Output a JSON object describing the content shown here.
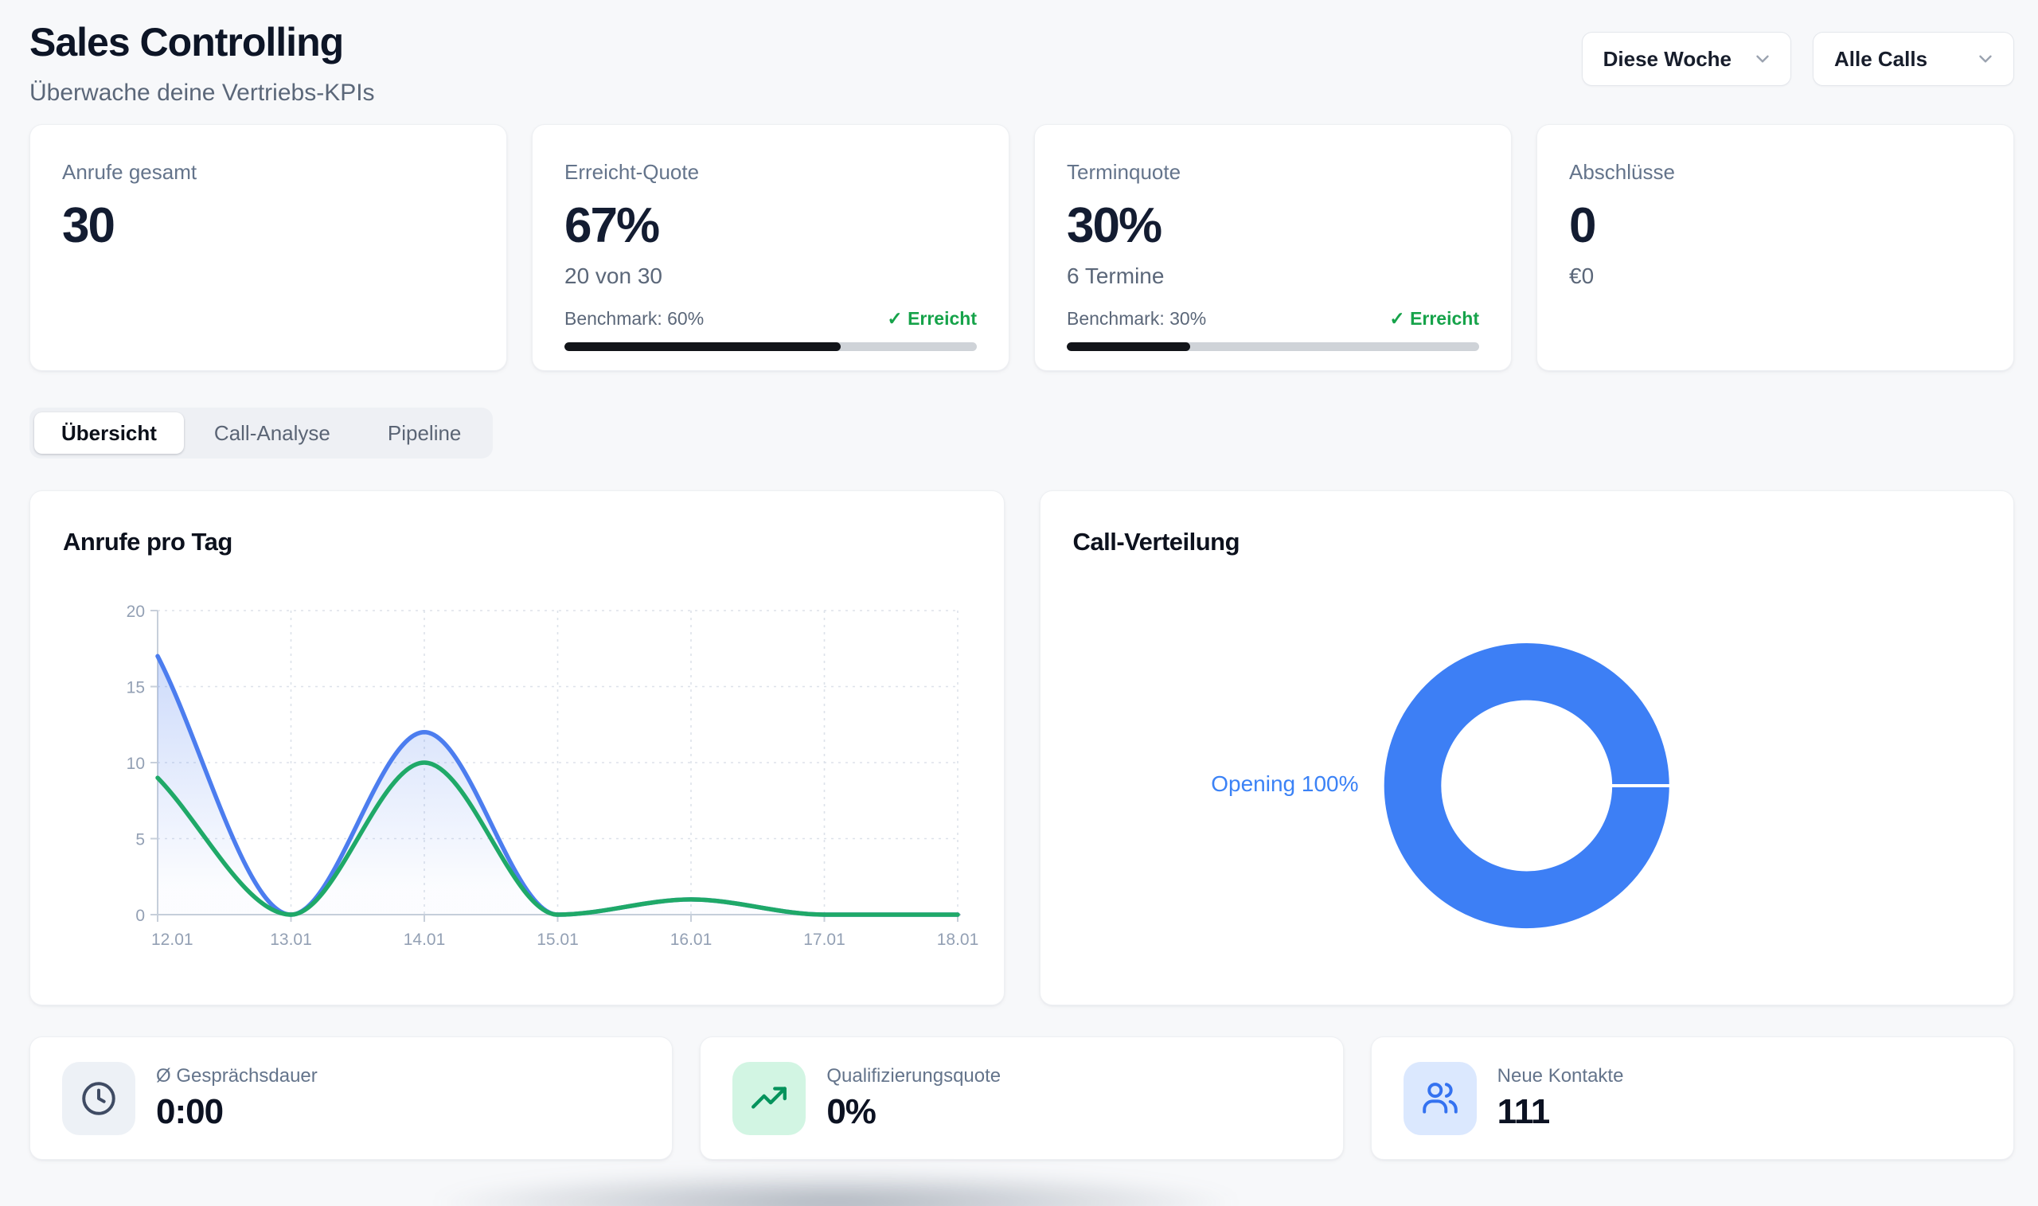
{
  "header": {
    "title": "Sales Controlling",
    "subtitle": "Überwache deine Vertriebs-KPIs",
    "filters": [
      {
        "label": "Diese Woche"
      },
      {
        "label": "Alle Calls"
      }
    ]
  },
  "kpis": [
    {
      "label": "Anrufe gesamt",
      "value": "30"
    },
    {
      "label": "Erreicht-Quote",
      "value": "67%",
      "sub": "20 von 30",
      "benchmark": "Benchmark: 60%",
      "status": "✓ Erreicht",
      "progress": 67
    },
    {
      "label": "Terminquote",
      "value": "30%",
      "sub": "6 Termine",
      "benchmark": "Benchmark: 30%",
      "status": "✓ Erreicht",
      "progress": 30
    },
    {
      "label": "Abschlüsse",
      "value": "0",
      "sub": "€0"
    }
  ],
  "tabs": [
    {
      "label": "Übersicht",
      "active": true
    },
    {
      "label": "Call-Analyse",
      "active": false
    },
    {
      "label": "Pipeline",
      "active": false
    }
  ],
  "panels": {
    "line_chart_title": "Anrufe pro Tag",
    "donut_chart_title": "Call-Verteilung",
    "donut_center_label": "Opening 100%"
  },
  "chart_data": [
    {
      "type": "line",
      "title": "Anrufe pro Tag",
      "x": [
        "12.01",
        "13.01",
        "14.01",
        "15.01",
        "16.01",
        "17.01",
        "18.01"
      ],
      "series": [
        {
          "name": "series-blue",
          "color": "#4c7def",
          "area_fill": true,
          "values": [
            17,
            0,
            12,
            0,
            1,
            0,
            0
          ]
        },
        {
          "name": "series-green",
          "color": "#1fa968",
          "area_fill": false,
          "values": [
            9,
            0,
            10,
            0,
            1,
            0,
            0
          ]
        }
      ],
      "ylim": [
        0,
        20
      ],
      "yticks": [
        0,
        5,
        10,
        15,
        20
      ],
      "grid": "dashed",
      "legend": "none"
    },
    {
      "type": "donut",
      "title": "Call-Verteilung",
      "slices": [
        {
          "label": "Opening",
          "value": 100,
          "color": "#3d7ff5",
          "display_label": "Opening 100%"
        }
      ]
    }
  ],
  "footer_stats": [
    {
      "label": "Ø Gesprächsdauer",
      "value": "0:00",
      "icon": "clock-icon"
    },
    {
      "label": "Qualifizierungsquote",
      "value": "0%",
      "icon": "trending-up-icon"
    },
    {
      "label": "Neue Kontakte",
      "value": "111",
      "icon": "users-icon"
    }
  ],
  "colors": {
    "page_background": "#f7f8fa",
    "accent_blue": "#3d7ff5",
    "line_blue": "#4c7def",
    "line_green": "#1fa968",
    "status_green": "#16a34a",
    "text_dark": "#0f172a",
    "text_gray": "#64748b",
    "progress_fill": "#121419",
    "progress_track": "#cfd3d8"
  }
}
